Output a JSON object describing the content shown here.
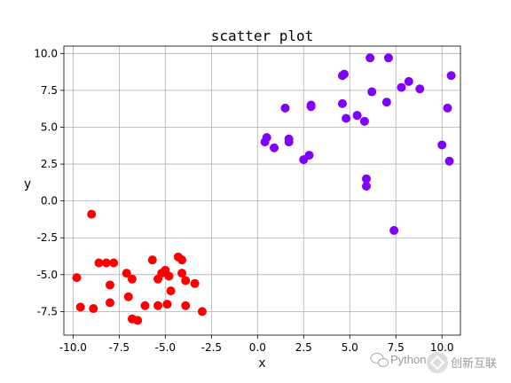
{
  "chart_data": {
    "type": "scatter",
    "title": "scatter plot",
    "xlabel": "x",
    "ylabel": "y",
    "xlim": [
      -10.5,
      11
    ],
    "ylim": [
      -9.1,
      10.5
    ],
    "xticks": [
      -10.0,
      -7.5,
      -5.0,
      -2.5,
      0.0,
      2.5,
      5.0,
      7.5,
      10.0
    ],
    "xtick_labels": [
      "-10.0",
      "-7.5",
      "-5.0",
      "-2.5",
      "0.0",
      "2.5",
      "5.0",
      "7.5",
      "10.0"
    ],
    "yticks": [
      -7.5,
      -5.0,
      -2.5,
      0.0,
      2.5,
      5.0,
      7.5,
      10.0
    ],
    "ytick_labels": [
      "-7.5",
      "-5.0",
      "-2.5",
      "0.0",
      "2.5",
      "5.0",
      "7.5",
      "10.0"
    ],
    "grid": true,
    "series": [
      {
        "color": "#ff0000",
        "points": [
          [
            -9.0,
            -0.9
          ],
          [
            -9.8,
            -5.2
          ],
          [
            -9.6,
            -7.2
          ],
          [
            -8.9,
            -7.3
          ],
          [
            -8.6,
            -4.2
          ],
          [
            -8.2,
            -4.2
          ],
          [
            -8.0,
            -5.7
          ],
          [
            -8.0,
            -6.9
          ],
          [
            -7.8,
            -4.2
          ],
          [
            -7.1,
            -4.9
          ],
          [
            -7.0,
            -6.5
          ],
          [
            -6.8,
            -8.0
          ],
          [
            -6.8,
            -5.3
          ],
          [
            -6.5,
            -8.1
          ],
          [
            -6.1,
            -7.1
          ],
          [
            -5.7,
            -4.0
          ],
          [
            -5.4,
            -5.3
          ],
          [
            -5.4,
            -7.1
          ],
          [
            -5.0,
            -4.7
          ],
          [
            -4.9,
            -7.0
          ],
          [
            -4.7,
            -6.1
          ],
          [
            -4.3,
            -3.8
          ],
          [
            -4.1,
            -4.9
          ],
          [
            -3.9,
            -5.4
          ],
          [
            -3.9,
            -7.1
          ],
          [
            -3.4,
            -5.6
          ],
          [
            -3.0,
            -7.5
          ],
          [
            -5.2,
            -4.9
          ],
          [
            -4.8,
            -5.1
          ],
          [
            -4.1,
            -4.0
          ]
        ]
      },
      {
        "color": "#8000ff",
        "points": [
          [
            0.4,
            4.0
          ],
          [
            0.5,
            4.3
          ],
          [
            0.9,
            3.6
          ],
          [
            1.5,
            6.3
          ],
          [
            1.7,
            4.2
          ],
          [
            1.7,
            4.0
          ],
          [
            2.5,
            2.8
          ],
          [
            2.8,
            3.1
          ],
          [
            2.9,
            6.5
          ],
          [
            2.9,
            6.4
          ],
          [
            4.6,
            8.5
          ],
          [
            4.7,
            8.6
          ],
          [
            4.6,
            6.6
          ],
          [
            4.8,
            5.6
          ],
          [
            5.4,
            5.8
          ],
          [
            5.8,
            5.4
          ],
          [
            5.9,
            1.5
          ],
          [
            5.9,
            1.0
          ],
          [
            6.1,
            9.7
          ],
          [
            6.2,
            7.4
          ],
          [
            7.0,
            6.7
          ],
          [
            7.1,
            9.7
          ],
          [
            7.4,
            -2.0
          ],
          [
            7.8,
            7.7
          ],
          [
            8.2,
            8.1
          ],
          [
            8.8,
            7.6
          ],
          [
            10.0,
            3.8
          ],
          [
            10.3,
            6.3
          ],
          [
            10.4,
            2.7
          ],
          [
            10.5,
            8.5
          ]
        ]
      }
    ]
  },
  "watermark": {
    "text": "Python",
    "brand_text": "创新互联"
  }
}
